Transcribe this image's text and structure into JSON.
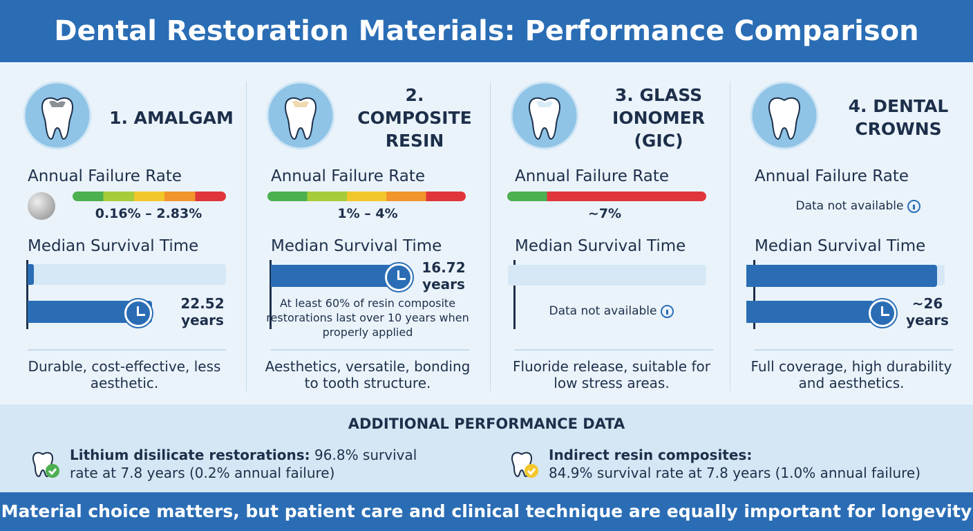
{
  "header": {
    "title": "Dental Restoration Materials: Performance Comparison"
  },
  "materials": [
    {
      "title": "1. AMALGAM",
      "failure_label": "Annual Failure Rate",
      "failure_value": "0.16% – 2.83%",
      "survival_label": "Median Survival Time",
      "survival_value": "22.52 years",
      "summary": "Durable, cost-effective, less aesthetic."
    },
    {
      "title": "2. COMPOSITE RESIN",
      "failure_label": "Annual Failure Rate",
      "failure_value": "1% – 4%",
      "survival_label": "Median Survival Time",
      "survival_value": "16.72 years",
      "survival_note": "At least 60% of resin composite restorations last over 10 years when properly applied",
      "summary": "Aesthetics, versatile, bonding to tooth structure."
    },
    {
      "title": "3. GLASS IONOMER (GIC)",
      "failure_label": "Annual Failure Rate",
      "failure_value": "~7%",
      "survival_label": "Median Survival Time",
      "survival_value": "Data not available",
      "summary": "Fluoride release, suitable for low stress areas."
    },
    {
      "title": "4. DENTAL CROWNS",
      "failure_label": "Annual Failure Rate",
      "failure_value": "Data not available",
      "survival_label": "Median Survival Time",
      "survival_value": "~26 years",
      "summary": "Full coverage, high durability and aesthetics."
    }
  ],
  "additional": {
    "title": "ADDITIONAL PERFORMANCE DATA",
    "items": [
      {
        "bold": "Lithium disilicate restorations:",
        "text": "96.8% survival rate at 7.8 years (0.2% annual failure)"
      },
      {
        "bold": "Indirect resin composites:",
        "text": "84.9% survival rate at 7.8 years (1.0% annual failure)"
      }
    ]
  },
  "footer": {
    "text": "Material choice matters, but patient care and clinical technique are equally important for longevity"
  }
}
